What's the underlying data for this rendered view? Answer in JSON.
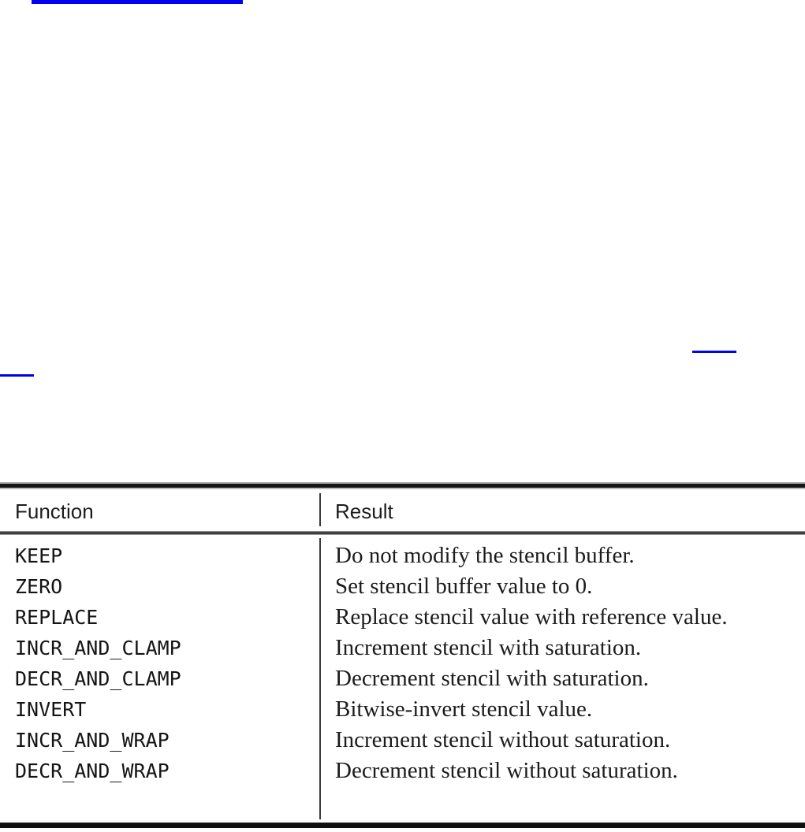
{
  "page": {
    "background": "#ffffff",
    "link_color": "#0101ef"
  },
  "links": {
    "top_fragment_label": "",
    "right_fragment_label": "",
    "left_fragment_label": ""
  },
  "table": {
    "header": {
      "function": "Function",
      "result": "Result"
    },
    "rows": [
      {
        "function": "KEEP",
        "result": "Do not modify the stencil buffer."
      },
      {
        "function": "ZERO",
        "result": "Set stencil buffer value to 0."
      },
      {
        "function": "REPLACE",
        "result": "Replace stencil value with reference value."
      },
      {
        "function": "INCR_AND_CLAMP",
        "result": "Increment stencil with saturation."
      },
      {
        "function": "DECR_AND_CLAMP",
        "result": "Decrement stencil with saturation."
      },
      {
        "function": "INVERT",
        "result": "Bitwise-invert stencil value."
      },
      {
        "function": "INCR_AND_WRAP",
        "result": "Increment stencil without saturation."
      },
      {
        "function": "DECR_AND_WRAP",
        "result": "Decrement stencil without saturation."
      }
    ],
    "colors": {
      "text": "#1a1a1a",
      "rule_dark": "#161616",
      "rule_separator": "#3f3f3f",
      "column_divider": "#3a3a3a"
    }
  }
}
